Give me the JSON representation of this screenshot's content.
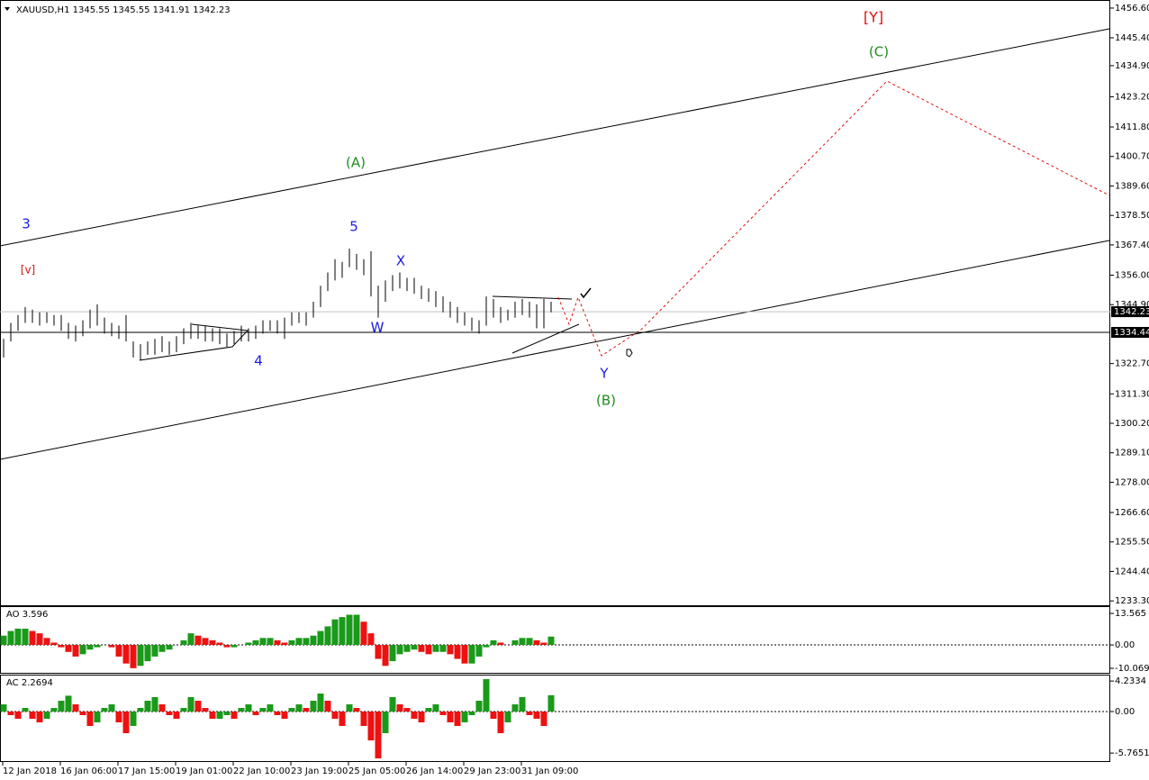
{
  "chart_data": [
    {
      "type": "ohlc",
      "title": "XAUUSD,H1  1345.55 1345.55 1341.91 1342.23",
      "high": [
        1332,
        1338,
        1341,
        1344,
        1343,
        1342,
        1342,
        1341,
        1341,
        1338,
        1337,
        1339,
        1343,
        1345,
        1340,
        1338,
        1337,
        1341,
        1331,
        1330,
        1331,
        1332,
        1333,
        1331,
        1333,
        1336,
        1338,
        1337,
        1337,
        1336,
        1336,
        1334,
        1335,
        1337,
        1336,
        1337,
        1339,
        1339,
        1339,
        1340,
        1342,
        1342,
        1342,
        1346,
        1352,
        1357,
        1362,
        1361,
        1366,
        1364,
        1362,
        1365,
        1352,
        1354,
        1356,
        1357,
        1355,
        1355,
        1352,
        1351,
        1350,
        1348,
        1346,
        1344,
        1342,
        1340,
        1339,
        1348,
        1347,
        1344,
        1343,
        1346,
        1347,
        1346,
        1345,
        1347,
        1346
      ],
      "low": [
        1325,
        1331,
        1335,
        1338,
        1338,
        1337,
        1338,
        1337,
        1335,
        1332,
        1331,
        1333,
        1336,
        1337,
        1334,
        1333,
        1332,
        1331,
        1325,
        1324,
        1326,
        1326,
        1327,
        1326,
        1327,
        1330,
        1332,
        1332,
        1331,
        1331,
        1330,
        1329,
        1330,
        1331,
        1331,
        1332,
        1334,
        1335,
        1334,
        1332,
        1337,
        1338,
        1337,
        1340,
        1344,
        1350,
        1354,
        1355,
        1359,
        1358,
        1356,
        1348,
        1340,
        1346,
        1350,
        1351,
        1350,
        1349,
        1347,
        1346,
        1344,
        1342,
        1340,
        1338,
        1337,
        1335,
        1334,
        1337,
        1340,
        1338,
        1339,
        1340,
        1341,
        1340,
        1336,
        1336,
        1342
      ],
      "color": "#000000",
      "ylim": [
        1232,
        1459.3
      ],
      "yticks": [
        {
          "value": 1456.6,
          "label": "1456.60"
        },
        {
          "value": 1445.4,
          "label": "1445.40"
        },
        {
          "value": 1434.9,
          "label": "1434.90"
        },
        {
          "value": 1423.2,
          "label": "1423.20"
        },
        {
          "value": 1411.8,
          "label": "1411.80"
        },
        {
          "value": 1400.7,
          "label": "1400.70"
        },
        {
          "value": 1389.6,
          "label": "1389.60"
        },
        {
          "value": 1378.5,
          "label": "1378.50"
        },
        {
          "value": 1367.4,
          "label": "1367.40"
        },
        {
          "value": 1356,
          "label": "1356.00"
        },
        {
          "value": 1344.9,
          "label": "1344.90"
        },
        {
          "value": 1322.7,
          "label": "1322.70"
        },
        {
          "value": 1311.3,
          "label": "1311.30"
        },
        {
          "value": 1300.2,
          "label": "1300.20"
        },
        {
          "value": 1289.1,
          "label": "1289.10"
        },
        {
          "value": 1278,
          "label": "1278.00"
        },
        {
          "value": 1266.6,
          "label": "1266.60"
        },
        {
          "value": 1255.5,
          "label": "1255.50"
        },
        {
          "value": 1244.4,
          "label": "1244.40"
        },
        {
          "value": 1233.3,
          "label": "1233.30"
        }
      ],
      "price_lines": [
        {
          "value": 1342.23,
          "label": "1342.23",
          "color": "#c0c0c0"
        },
        {
          "value": 1334.44,
          "label": "1334.44",
          "color": "#000000"
        }
      ],
      "time_labels": [
        "12 Jan 2018",
        "16 Jan 06:00",
        "17 Jan 15:00",
        "19 Jan 01:00",
        "22 Jan 10:00",
        "23 Jan 19:00",
        "25 Jan 05:00",
        "26 Jan 14:00",
        "29 Jan 23:00",
        "31 Jan 09:00"
      ],
      "annotations": [
        {
          "text": "[Y]",
          "color": "#e01010"
        },
        {
          "text": "(C)",
          "color": "#1e8c1e"
        },
        {
          "text": "(A)",
          "color": "#1e8c1e"
        },
        {
          "text": "3",
          "color": "#1a1ae6"
        },
        {
          "text": "[v]",
          "color": "#e01010"
        },
        {
          "text": "5",
          "color": "#1a1ae6"
        },
        {
          "text": "X",
          "color": "#1a1ae6"
        },
        {
          "text": "W",
          "color": "#1a1ae6"
        },
        {
          "text": "4",
          "color": "#1a1ae6"
        },
        {
          "text": "Y",
          "color": "#1a1ae6"
        },
        {
          "text": "(B)",
          "color": "#1e8c1e"
        }
      ]
    },
    {
      "type": "histogram",
      "title": "AO 3.596",
      "values": [
        4,
        6,
        7,
        7,
        6,
        5,
        3,
        1,
        -1,
        -3,
        -5,
        -4,
        -2,
        -1,
        0,
        -1,
        -5,
        -8,
        -10,
        -9,
        -7,
        -5,
        -3,
        -2,
        0,
        2,
        5,
        4,
        3,
        2,
        1,
        -1,
        -1,
        0,
        1,
        2,
        3,
        3,
        2,
        1,
        2,
        3,
        3,
        4,
        6,
        8,
        11,
        12,
        13,
        13,
        10,
        5,
        -6,
        -9,
        -7,
        -4,
        -3,
        -2,
        -3,
        -4,
        -3,
        -3,
        -4,
        -6,
        -8,
        -8,
        -5,
        -1,
        2,
        1,
        0,
        2,
        3,
        3,
        2,
        1,
        3.596
      ],
      "up_color": "#1a9a1a",
      "down_color": "#ee1111",
      "ylim": [
        -12,
        16.3
      ],
      "yticks": [
        13.565,
        {
          "value": 0,
          "label": "0.00"
        },
        -10.069
      ]
    },
    {
      "type": "histogram",
      "title": "AC 2.2694",
      "values": [
        1,
        -0.5,
        -1,
        0.5,
        -1,
        -1.5,
        -1,
        0.5,
        1.5,
        2.2,
        1,
        -0.5,
        -2,
        -1.5,
        0.5,
        1,
        -1.5,
        -3,
        -2,
        0.5,
        1.5,
        2,
        1,
        -0.5,
        -1,
        0.5,
        2,
        1.5,
        0.5,
        -1,
        -1,
        -0.5,
        -1,
        0.5,
        1,
        -0.5,
        0.5,
        1,
        -0.5,
        -1,
        0.5,
        1,
        0.5,
        1.5,
        2.5,
        1.5,
        -1,
        -2,
        1,
        0.5,
        -2,
        -4,
        -6.5,
        -3,
        2,
        1,
        0.5,
        -1,
        -1.5,
        0.5,
        1,
        -0.5,
        -1.5,
        -2,
        -1.5,
        -0.5,
        1.5,
        4.5,
        -1,
        -3,
        -1.5,
        1,
        2,
        -0.5,
        -1,
        -2,
        2.2694
      ],
      "up_color": "#1a9a1a",
      "down_color": "#ee1111",
      "ylim": [
        -7,
        5
      ],
      "yticks": [
        4.2334,
        {
          "value": 0,
          "label": "0.00"
        },
        -5.7651
      ]
    }
  ]
}
